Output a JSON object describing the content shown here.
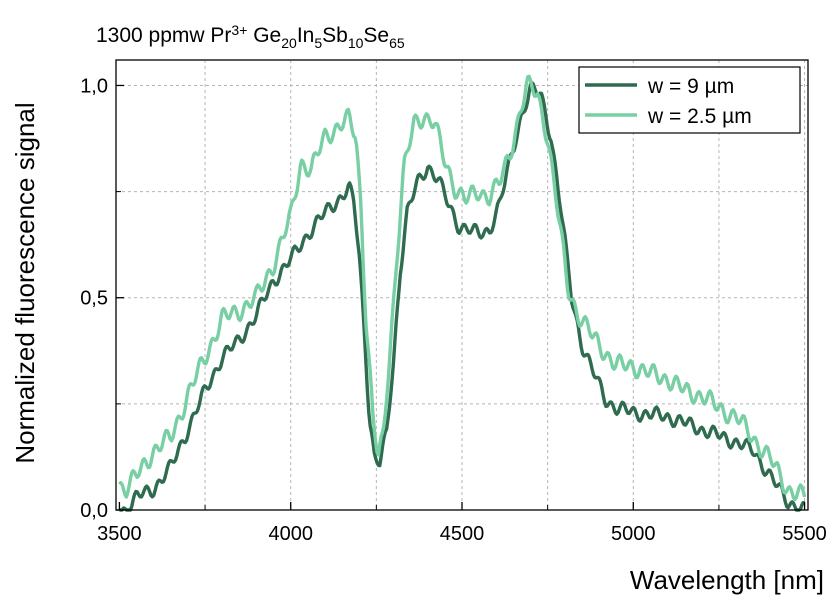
{
  "chart_data": {
    "type": "line",
    "title_parts": {
      "prefix": "1300 ppmw Pr",
      "ion_charge": "3+",
      "ge": " Ge",
      "ge_sub": "20",
      "in": "In",
      "in_sub": "5",
      "sb": "Sb",
      "sb_sub": "10",
      "se": "Se",
      "se_sub": "65"
    },
    "xlabel": "Wavelength [nm]",
    "ylabel": "Normalized fluorescence signal",
    "xlim": [
      3490,
      5510
    ],
    "ylim": [
      0,
      1.06
    ],
    "x_ticks": [
      3500,
      4000,
      4500,
      5000,
      5500
    ],
    "x_tick_labels": [
      "3500",
      "4000",
      "4500",
      "5000",
      "5500"
    ],
    "y_ticks": [
      0,
      0.5,
      1.0
    ],
    "y_tick_labels": [
      "0,0",
      "0,5",
      "1,0"
    ],
    "grid": true,
    "legend_position": "top-right",
    "series": [
      {
        "name": "w = 9 µm",
        "color": "#2e6b4f",
        "points": [
          [
            3500,
            0.0
          ],
          [
            3520,
            0.0
          ],
          [
            3550,
            0.03
          ],
          [
            3600,
            0.05
          ],
          [
            3650,
            0.1
          ],
          [
            3700,
            0.19
          ],
          [
            3750,
            0.28
          ],
          [
            3800,
            0.36
          ],
          [
            3850,
            0.4
          ],
          [
            3900,
            0.46
          ],
          [
            3950,
            0.54
          ],
          [
            4000,
            0.59
          ],
          [
            4050,
            0.65
          ],
          [
            4100,
            0.7
          ],
          [
            4150,
            0.74
          ],
          [
            4170,
            0.76
          ],
          [
            4185,
            0.72
          ],
          [
            4200,
            0.6
          ],
          [
            4215,
            0.42
          ],
          [
            4230,
            0.22
          ],
          [
            4245,
            0.12
          ],
          [
            4260,
            0.11
          ],
          [
            4280,
            0.18
          ],
          [
            4300,
            0.35
          ],
          [
            4320,
            0.57
          ],
          [
            4340,
            0.7
          ],
          [
            4370,
            0.77
          ],
          [
            4400,
            0.81
          ],
          [
            4430,
            0.78
          ],
          [
            4460,
            0.72
          ],
          [
            4490,
            0.67
          ],
          [
            4520,
            0.66
          ],
          [
            4550,
            0.65
          ],
          [
            4580,
            0.66
          ],
          [
            4610,
            0.72
          ],
          [
            4640,
            0.82
          ],
          [
            4670,
            0.92
          ],
          [
            4700,
            0.99
          ],
          [
            4730,
            0.98
          ],
          [
            4760,
            0.88
          ],
          [
            4790,
            0.7
          ],
          [
            4820,
            0.5
          ],
          [
            4850,
            0.39
          ],
          [
            4880,
            0.33
          ],
          [
            4920,
            0.26
          ],
          [
            4950,
            0.24
          ],
          [
            5000,
            0.23
          ],
          [
            5100,
            0.22
          ],
          [
            5200,
            0.19
          ],
          [
            5300,
            0.16
          ],
          [
            5350,
            0.14
          ],
          [
            5400,
            0.08
          ],
          [
            5450,
            0.02
          ],
          [
            5500,
            0.0
          ]
        ]
      },
      {
        "name": "w = 2.5 µm",
        "color": "#79cfa4",
        "points": [
          [
            3500,
            0.06
          ],
          [
            3520,
            0.05
          ],
          [
            3550,
            0.08
          ],
          [
            3600,
            0.14
          ],
          [
            3650,
            0.17
          ],
          [
            3700,
            0.27
          ],
          [
            3750,
            0.36
          ],
          [
            3800,
            0.45
          ],
          [
            3850,
            0.47
          ],
          [
            3900,
            0.5
          ],
          [
            3950,
            0.58
          ],
          [
            4000,
            0.69
          ],
          [
            4030,
            0.82
          ],
          [
            4060,
            0.8
          ],
          [
            4100,
            0.88
          ],
          [
            4150,
            0.91
          ],
          [
            4170,
            0.92
          ],
          [
            4190,
            0.88
          ],
          [
            4205,
            0.72
          ],
          [
            4220,
            0.45
          ],
          [
            4240,
            0.22
          ],
          [
            4255,
            0.12
          ],
          [
            4270,
            0.17
          ],
          [
            4290,
            0.38
          ],
          [
            4310,
            0.6
          ],
          [
            4330,
            0.8
          ],
          [
            4360,
            0.91
          ],
          [
            4390,
            0.93
          ],
          [
            4420,
            0.91
          ],
          [
            4450,
            0.82
          ],
          [
            4480,
            0.76
          ],
          [
            4510,
            0.73
          ],
          [
            4550,
            0.75
          ],
          [
            4580,
            0.74
          ],
          [
            4610,
            0.77
          ],
          [
            4640,
            0.84
          ],
          [
            4670,
            0.94
          ],
          [
            4690,
            1.0
          ],
          [
            4720,
            0.98
          ],
          [
            4750,
            0.88
          ],
          [
            4780,
            0.7
          ],
          [
            4810,
            0.52
          ],
          [
            4840,
            0.46
          ],
          [
            4880,
            0.41
          ],
          [
            4920,
            0.37
          ],
          [
            4950,
            0.34
          ],
          [
            5000,
            0.34
          ],
          [
            5050,
            0.32
          ],
          [
            5100,
            0.31
          ],
          [
            5150,
            0.28
          ],
          [
            5200,
            0.27
          ],
          [
            5250,
            0.24
          ],
          [
            5300,
            0.22
          ],
          [
            5350,
            0.17
          ],
          [
            5400,
            0.12
          ],
          [
            5450,
            0.05
          ],
          [
            5500,
            0.03
          ]
        ]
      }
    ]
  }
}
